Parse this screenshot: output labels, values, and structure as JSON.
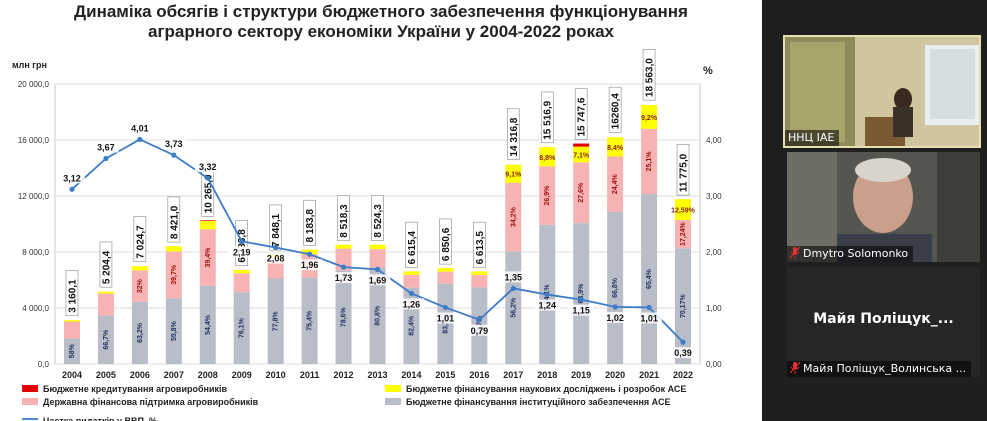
{
  "slide": {
    "title_line1": "Динаміка обсягів і структури бюджетного забезпечення функціонування",
    "title_line2": "аграрного сектору економіки України у 2004-2022 роках"
  },
  "chart_data": {
    "type": "bar",
    "stacked": true,
    "ylabel_left": "млн грн",
    "ylabel_right": "%",
    "ylim_left": [
      0,
      20000
    ],
    "yticks_left": [
      "0,0",
      "4 000,0",
      "8 000,0",
      "12 000,0",
      "16 000,0",
      "20 000,0"
    ],
    "ylim_right": [
      0,
      5
    ],
    "yticks_right": [
      "0,00",
      "1,00",
      "2,00",
      "3,00",
      "4,00"
    ],
    "categories": [
      "2004",
      "2005",
      "2006",
      "2007",
      "2008",
      "2009",
      "2010",
      "2011",
      "2012",
      "2013",
      "2014",
      "2015",
      "2016",
      "2017",
      "2018",
      "2019",
      "2020",
      "2021",
      "2022"
    ],
    "totals": [
      3160.1,
      5204.4,
      7024.7,
      8421.0,
      10265.0,
      6738.8,
      7848.1,
      8183.8,
      8518.3,
      8524.3,
      6615.4,
      6850.6,
      6613.5,
      14316.8,
      15516.9,
      15747.6,
      16260.4,
      18563.0,
      11775.0
    ],
    "total_labels": [
      "3 160,1",
      "5 204,4",
      "7 024,7",
      "8 421,0",
      "10 265,0",
      "6 738,8",
      "7 848,1",
      "8 183,8",
      "8 518,3",
      "8 524,3",
      "6 615,4",
      "6 850,6",
      "6 613,5",
      "14 316,8",
      "15 516,9",
      "15 747,6",
      "16260,4",
      "18 563,0",
      "11 775,0"
    ],
    "series": [
      {
        "name": "Бюджетне фінансування інституційного забезпечення АСЕ",
        "color": "#b8bdc7",
        "values": [
          1833,
          3472,
          4440,
          4699,
          5584,
          5128,
          6106,
          6171,
          6695,
          6888,
          5451,
          5734,
          5469,
          8046,
          9947,
          10063,
          10862,
          12140,
          8263
        ],
        "labels": [
          "58%",
          "66,7%",
          "63,2%",
          "55,8%",
          "54,4%",
          "76,1%",
          "77,8%",
          "75,4%",
          "78,6%",
          "80,8%",
          "82,4%",
          "83,7%",
          "82,7%",
          "56,2%",
          "64,1%",
          "63,9%",
          "66,8%",
          "65,4%",
          "70,17%"
        ]
      },
      {
        "name": "Державна фінансова підтримка агровиробників",
        "color": "#f7b3b3",
        "values": [
          1200,
          1572,
          2248,
          3343,
          4045,
          1341,
          1490,
          1677,
          1550,
          1321,
          914,
          864,
          882,
          4896,
          4174,
          4346,
          3967,
          4659,
          2030
        ],
        "labels": [
          "",
          "",
          "32%",
          "39,7%",
          "39,4%",
          "",
          "",
          "",
          "",
          "",
          "",
          "",
          "",
          "34,2%",
          "26,9%",
          "27,6%",
          "24,4%",
          "25,1%",
          "17,24%"
        ]
      },
      {
        "name": "Бюджетне фінансування наукових досліджень і розробок АСЕ",
        "color": "#ffff00",
        "values": [
          100,
          130,
          300,
          370,
          590,
          250,
          250,
          330,
          270,
          310,
          250,
          250,
          260,
          1300,
          1365,
          1118,
          1366,
          1700,
          1482
        ],
        "labels": [
          "",
          "",
          "",
          "",
          "",
          "",
          "",
          "",
          "",
          "",
          "",
          "",
          "",
          "9,1%",
          "8,8%",
          "7,1%",
          "8,4%",
          "9,2%",
          "12,59%"
        ]
      },
      {
        "name": "Бюджетне кредитування агровиробників",
        "color": "#e00000",
        "values": [
          0,
          0,
          0,
          0,
          46,
          0,
          0,
          0,
          0,
          0,
          0,
          0,
          0,
          0,
          0,
          220,
          0,
          0,
          0
        ],
        "labels": []
      }
    ],
    "line_series": {
      "name": "Частка видатків у ВВП, %",
      "color": "#3d7cc9",
      "values": [
        3.12,
        3.67,
        4.01,
        3.73,
        3.32,
        2.19,
        2.08,
        1.96,
        1.73,
        1.69,
        1.26,
        1.01,
        0.79,
        1.35,
        1.24,
        1.15,
        1.02,
        1.01,
        0.39
      ],
      "labels": [
        "3,12",
        "3,67",
        "4,01",
        "3,73",
        "3,32",
        "2,19",
        "2,08",
        "1,96",
        "1,73",
        "1,69",
        "1,26",
        "1,01",
        "0,79",
        "1,35",
        "1,24",
        "1,15",
        "1,02",
        "1,01",
        "0,39"
      ]
    },
    "legend_placement": "bottom"
  },
  "participants": [
    {
      "name": "ННЦ IAE",
      "muted": false
    },
    {
      "name": "Dmytro Solomonko",
      "muted": true
    },
    {
      "name": "Майя Поліщук_Волинська ...",
      "muted": true,
      "initials": "Майя  Поліщук_..."
    }
  ]
}
